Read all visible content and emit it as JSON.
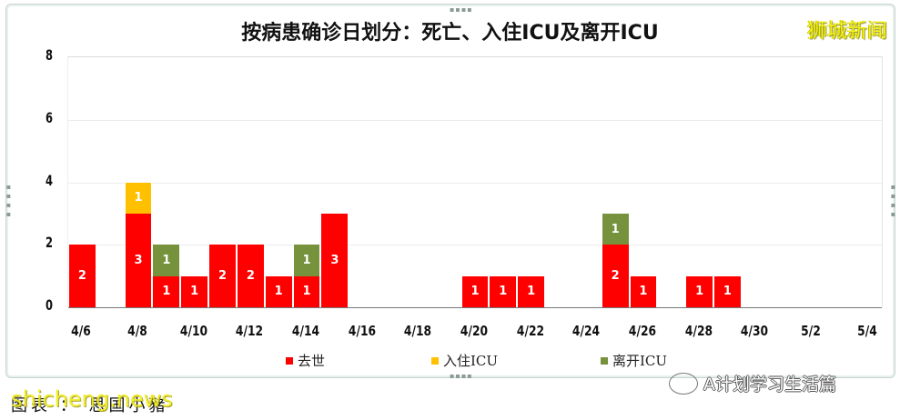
{
  "chart_data": {
    "type": "bar",
    "stacked": true,
    "title": "按病患确诊日划分：死亡、入住ICU及离开ICU",
    "xlabel": "",
    "ylabel": "",
    "ylim": [
      0,
      8
    ],
    "yticks": [
      0,
      2,
      4,
      6,
      8
    ],
    "grid": true,
    "legend_position": "bottom",
    "categories": [
      "4/6",
      "4/7",
      "4/8",
      "4/9",
      "4/10",
      "4/11",
      "4/12",
      "4/13",
      "4/14",
      "4/15",
      "4/16",
      "4/17",
      "4/18",
      "4/19",
      "4/20",
      "4/21",
      "4/22",
      "4/23",
      "4/24",
      "4/25",
      "4/26",
      "4/27",
      "4/28",
      "4/29",
      "4/30",
      "5/1",
      "5/2",
      "5/3",
      "5/4"
    ],
    "xtick_labels": [
      "4/6",
      "4/8",
      "4/10",
      "4/12",
      "4/14",
      "4/16",
      "4/18",
      "4/20",
      "4/22",
      "4/24",
      "4/26",
      "4/28",
      "4/30",
      "5/2",
      "5/4"
    ],
    "series": [
      {
        "name": "去世",
        "color": "#ff0000",
        "values": [
          2,
          0,
          3,
          1,
          1,
          2,
          2,
          1,
          1,
          3,
          0,
          0,
          0,
          0,
          1,
          1,
          1,
          0,
          0,
          2,
          1,
          0,
          1,
          1,
          0,
          0,
          0,
          0,
          0
        ]
      },
      {
        "name": "入住ICU",
        "color": "#ffc000",
        "values": [
          0,
          0,
          1,
          0,
          0,
          0,
          0,
          0,
          0,
          0,
          0,
          0,
          0,
          0,
          0,
          0,
          0,
          0,
          0,
          0,
          0,
          0,
          0,
          0,
          0,
          0,
          0,
          0,
          0
        ]
      },
      {
        "name": "离开ICU",
        "color": "#76923c",
        "values": [
          0,
          0,
          0,
          1,
          0,
          0,
          0,
          0,
          1,
          0,
          0,
          0,
          0,
          0,
          0,
          0,
          0,
          0,
          0,
          1,
          0,
          0,
          0,
          0,
          0,
          0,
          0,
          0,
          0
        ]
      }
    ]
  },
  "header": {
    "title": "按病患确诊日划分：死亡、入住ICU及离开ICU",
    "brand": "狮城新闻"
  },
  "legend": [
    {
      "label": "去世",
      "color": "#ff0000"
    },
    {
      "label": "入住ICU",
      "color": "#ffc000"
    },
    {
      "label": "离开ICU",
      "color": "#76923c"
    }
  ],
  "footer": {
    "caption": "图表 ： 思国小豬",
    "watermark": "shicheng.news",
    "wechat_account": "A计划学习生活篇"
  }
}
